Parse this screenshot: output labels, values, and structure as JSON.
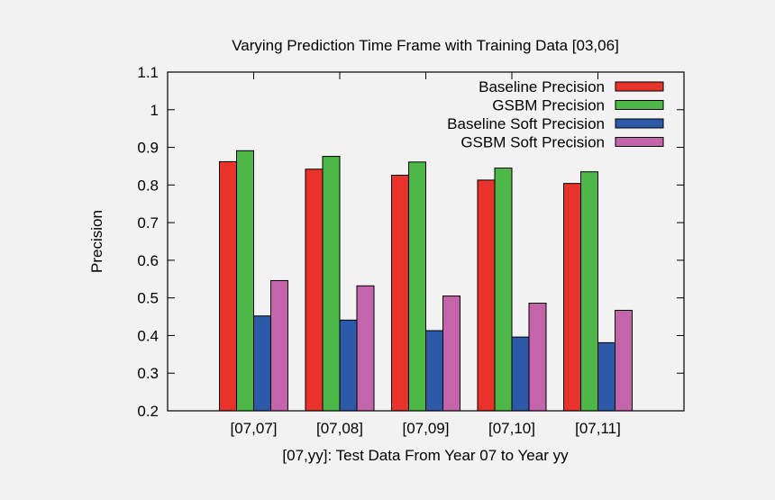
{
  "chart_data": {
    "type": "bar",
    "title": "Varying Prediction Time Frame with Training Data [03,06]",
    "xlabel": "[07,yy]: Test Data From Year 07 to Year yy",
    "ylabel": "Precision",
    "ylim": [
      0.2,
      1.1
    ],
    "yticks": [
      "0.2",
      "0.3",
      "0.4",
      "0.5",
      "0.6",
      "0.7",
      "0.8",
      "0.9",
      "1",
      "1.1"
    ],
    "categories": [
      "[07,07]",
      "[07,08]",
      "[07,09]",
      "[07,10]",
      "[07,11]"
    ],
    "grid": false,
    "legend_position": "top-right",
    "series": [
      {
        "name": "Baseline Precision",
        "color": "#e8322a",
        "values": [
          0.862,
          0.842,
          0.826,
          0.813,
          0.804
        ]
      },
      {
        "name": "GSBM Precision",
        "color": "#4db848",
        "values": [
          0.891,
          0.876,
          0.861,
          0.845,
          0.835
        ]
      },
      {
        "name": "Baseline Soft Precision",
        "color": "#2c59a8",
        "values": [
          0.452,
          0.441,
          0.413,
          0.396,
          0.381
        ]
      },
      {
        "name": "GSBM Soft Precision",
        "color": "#c464aa",
        "values": [
          0.546,
          0.532,
          0.505,
          0.486,
          0.467
        ]
      }
    ]
  }
}
